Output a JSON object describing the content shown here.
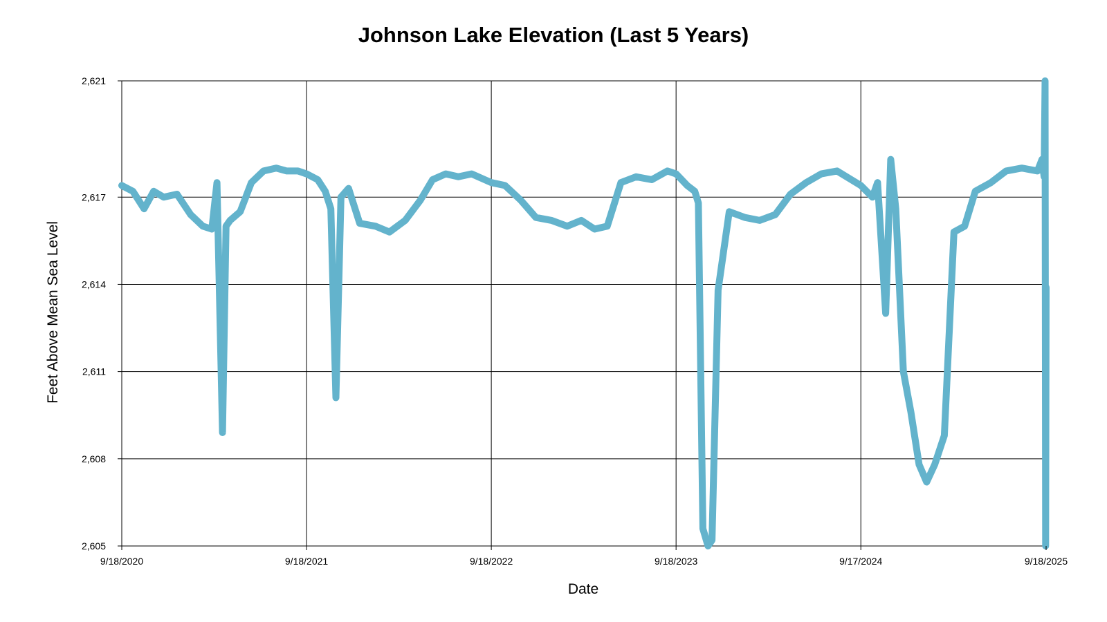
{
  "chart_data": {
    "type": "line",
    "title": "Johnson Lake Elevation (Last 5 Years)",
    "xlabel": "Date",
    "ylabel": "Feet Above Mean Sea Level",
    "ylim": [
      2605,
      2621
    ],
    "xlim": [
      "2020-09-18",
      "2025-09-18"
    ],
    "y_ticks": [
      2605,
      2608,
      2611,
      2614,
      2617,
      2621
    ],
    "y_tick_labels": [
      "2,605",
      "2,608",
      "2,611",
      "2,614",
      "2,617",
      "2,621"
    ],
    "x_ticks": [
      "2020-09-18",
      "2021-09-18",
      "2022-09-18",
      "2023-09-18",
      "2024-09-17",
      "2025-09-18"
    ],
    "x_tick_labels": [
      "9/18/2020",
      "9/18/2021",
      "9/18/2022",
      "9/18/2023",
      "9/17/2024",
      "9/18/2025"
    ],
    "grid": true,
    "line_color": "#63b3cc",
    "series": [
      {
        "x": [
          "2020-09-18",
          "2020-10-10",
          "2020-11-01",
          "2020-11-20",
          "2020-12-10",
          "2021-01-05",
          "2021-02-01",
          "2021-02-25",
          "2021-03-15",
          "2021-03-25",
          "2021-04-05",
          "2021-04-12",
          "2021-04-20",
          "2021-05-10",
          "2021-06-01",
          "2021-06-25",
          "2021-07-20",
          "2021-08-10",
          "2021-09-01",
          "2021-09-18",
          "2021-10-10",
          "2021-10-25",
          "2021-11-05",
          "2021-11-15",
          "2021-11-25",
          "2021-12-10",
          "2022-01-01",
          "2022-02-01",
          "2022-03-01",
          "2022-04-01",
          "2022-05-01",
          "2022-05-25",
          "2022-06-20",
          "2022-07-15",
          "2022-08-10",
          "2022-09-18",
          "2022-10-15",
          "2022-11-15",
          "2022-12-15",
          "2023-01-15",
          "2023-02-15",
          "2023-03-15",
          "2023-04-10",
          "2023-05-05",
          "2023-06-01",
          "2023-07-01",
          "2023-08-01",
          "2023-09-01",
          "2023-09-18",
          "2023-10-10",
          "2023-10-25",
          "2023-11-01",
          "2023-11-10",
          "2023-11-20",
          "2023-11-28",
          "2023-12-10",
          "2024-01-01",
          "2024-02-01",
          "2024-03-01",
          "2024-04-01",
          "2024-05-01",
          "2024-06-01",
          "2024-07-01",
          "2024-08-01",
          "2024-09-17",
          "2024-10-10",
          "2024-10-20",
          "2024-11-05",
          "2024-11-15",
          "2024-11-25",
          "2024-12-10",
          "2024-12-25",
          "2025-01-10",
          "2025-01-25",
          "2025-02-10",
          "2025-03-01",
          "2025-03-20",
          "2025-04-10",
          "2025-05-01",
          "2025-06-01",
          "2025-07-01",
          "2025-08-01",
          "2025-09-01",
          "2025-09-10",
          "2025-09-14",
          "2025-09-16",
          "2025-09-17",
          "2025-09-18"
        ],
        "y": [
          2617.4,
          2617.2,
          2616.6,
          2617.2,
          2617.0,
          2617.1,
          2616.4,
          2616.0,
          2615.9,
          2617.5,
          2608.9,
          2616.0,
          2616.2,
          2616.5,
          2617.5,
          2617.9,
          2618.0,
          2617.9,
          2617.9,
          2617.8,
          2617.6,
          2617.2,
          2616.6,
          2610.1,
          2617.0,
          2617.3,
          2616.1,
          2616.0,
          2615.8,
          2616.2,
          2616.9,
          2617.6,
          2617.8,
          2617.7,
          2617.8,
          2617.5,
          2617.4,
          2616.9,
          2616.3,
          2616.2,
          2616.0,
          2616.2,
          2615.9,
          2616.0,
          2617.5,
          2617.7,
          2617.6,
          2617.9,
          2617.8,
          2617.4,
          2617.2,
          2616.8,
          2605.6,
          2605.0,
          2605.2,
          2613.8,
          2616.5,
          2616.3,
          2616.2,
          2616.4,
          2617.1,
          2617.5,
          2617.8,
          2617.9,
          2617.4,
          2617.0,
          2617.5,
          2613.0,
          2618.3,
          2616.6,
          2611.0,
          2609.6,
          2607.8,
          2607.2,
          2607.8,
          2608.8,
          2615.8,
          2616.0,
          2617.2,
          2617.5,
          2617.9,
          2618.0,
          2617.9,
          2618.3,
          2617.7,
          2621.0,
          2605.0,
          2613.9
        ]
      }
    ]
  }
}
